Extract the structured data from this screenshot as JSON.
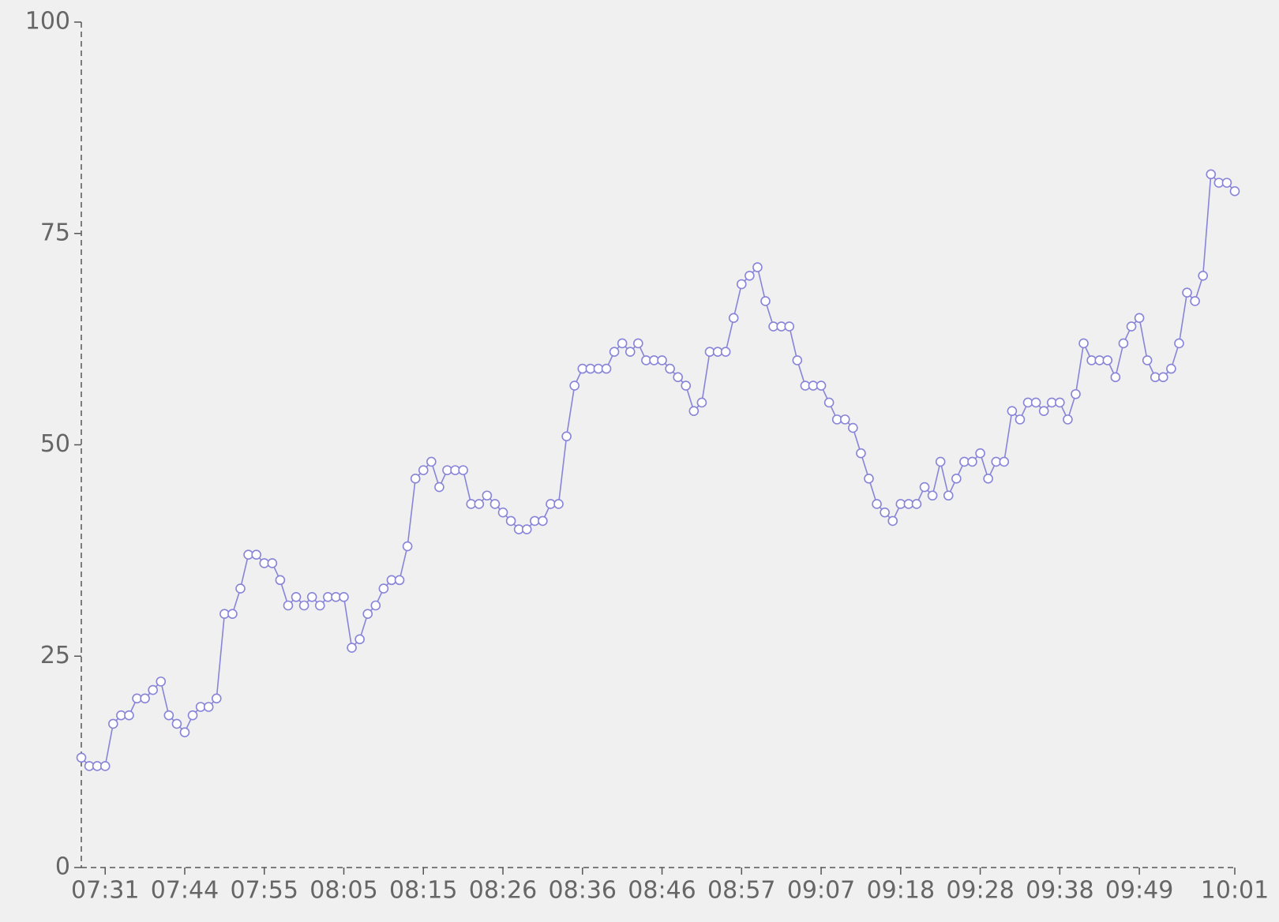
{
  "chart_data": {
    "type": "line",
    "categories": [
      null,
      null,
      null,
      "07:31",
      null,
      null,
      null,
      null,
      null,
      null,
      null,
      null,
      null,
      "07:44",
      null,
      null,
      null,
      null,
      null,
      null,
      null,
      null,
      null,
      "07:55",
      null,
      null,
      null,
      null,
      null,
      null,
      null,
      null,
      null,
      "08:05",
      null,
      null,
      null,
      null,
      null,
      null,
      null,
      null,
      null,
      "08:15",
      null,
      null,
      null,
      null,
      null,
      null,
      null,
      null,
      null,
      "08:26",
      null,
      null,
      null,
      null,
      null,
      null,
      null,
      null,
      null,
      "08:36",
      null,
      null,
      null,
      null,
      null,
      null,
      null,
      null,
      null,
      "08:46",
      null,
      null,
      null,
      null,
      null,
      null,
      null,
      null,
      null,
      "08:57",
      null,
      null,
      null,
      null,
      null,
      null,
      null,
      null,
      null,
      "09:07",
      null,
      null,
      null,
      null,
      null,
      null,
      null,
      null,
      null,
      "09:18",
      null,
      null,
      null,
      null,
      null,
      null,
      null,
      null,
      null,
      "09:28",
      null,
      null,
      null,
      null,
      null,
      null,
      null,
      null,
      null,
      "09:38",
      null,
      null,
      null,
      null,
      null,
      null,
      null,
      null,
      null,
      "09:49",
      null,
      null,
      null,
      null,
      null,
      null,
      null,
      null,
      null,
      null,
      null,
      "10:01"
    ],
    "values": [
      13,
      12,
      12,
      12,
      17,
      18,
      18,
      20,
      20,
      21,
      22,
      18,
      17,
      16,
      18,
      19,
      19,
      20,
      30,
      30,
      33,
      37,
      37,
      36,
      36,
      34,
      31,
      32,
      31,
      32,
      31,
      32,
      32,
      32,
      26,
      27,
      30,
      31,
      33,
      34,
      34,
      38,
      46,
      47,
      48,
      45,
      47,
      47,
      47,
      43,
      43,
      44,
      43,
      42,
      41,
      40,
      40,
      41,
      41,
      43,
      43,
      51,
      57,
      59,
      59,
      59,
      59,
      61,
      62,
      61,
      62,
      60,
      60,
      60,
      59,
      58,
      57,
      54,
      55,
      61,
      61,
      61,
      65,
      69,
      70,
      71,
      67,
      64,
      64,
      64,
      60,
      57,
      57,
      57,
      55,
      53,
      53,
      52,
      49,
      46,
      43,
      42,
      41,
      43,
      43,
      43,
      45,
      44,
      48,
      44,
      46,
      48,
      48,
      49,
      46,
      48,
      48,
      54,
      53,
      55,
      55,
      54,
      55,
      55,
      53,
      56,
      62,
      60,
      60,
      60,
      58,
      62,
      64,
      65,
      60,
      58,
      58,
      59,
      62,
      68,
      67,
      70,
      82,
      81,
      81,
      80
    ],
    "color": "#8884d8",
    "ylim": [
      0,
      100
    ],
    "yticks": [
      0,
      25,
      50,
      75,
      100
    ]
  }
}
